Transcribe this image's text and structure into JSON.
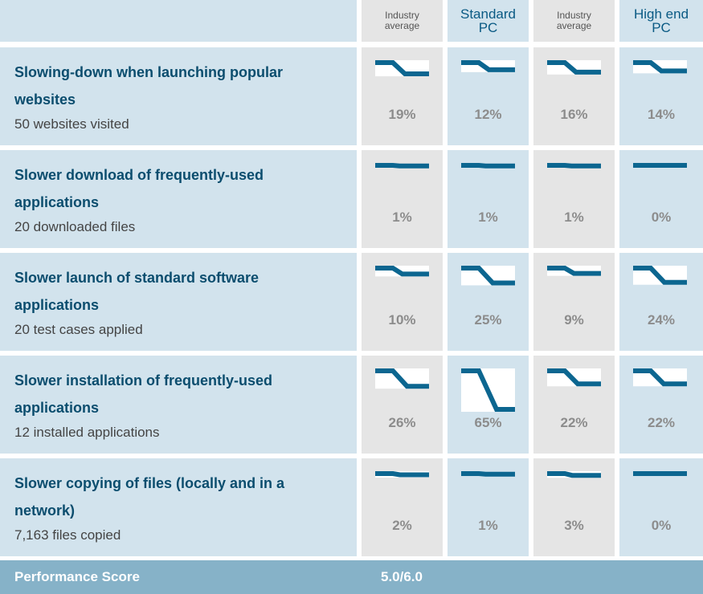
{
  "header": {
    "columns": [
      {
        "label": "Industry average",
        "style": "small",
        "bg": "#e5e5e5"
      },
      {
        "label": "Standard PC",
        "style": "big",
        "bg": "#d2e3ed"
      },
      {
        "label": "Industry average",
        "style": "small",
        "bg": "#e5e5e5"
      },
      {
        "label": "High end PC",
        "style": "big",
        "bg": "#d2e3ed"
      }
    ]
  },
  "colors": {
    "row_bg": "#d2e3ed",
    "gray_col_bg": "#e5e5e5",
    "line": "#0c6690",
    "title_text": "#0b4d6e",
    "score_bar": "#86b2c8"
  },
  "rows": [
    {
      "title": "Slowing-down when launching popular websites",
      "subtitle": "50 websites visited",
      "values": [
        "19%",
        "12%",
        "16%",
        "14%"
      ],
      "fractions": [
        0.19,
        0.12,
        0.16,
        0.14
      ]
    },
    {
      "title": "Slower download of frequently-used applications",
      "subtitle": "20 downloaded files",
      "values": [
        "1%",
        "1%",
        "1%",
        "0%"
      ],
      "fractions": [
        0.01,
        0.01,
        0.01,
        0.0
      ]
    },
    {
      "title": "Slower launch of standard software applications",
      "subtitle": "20 test cases applied",
      "values": [
        "10%",
        "25%",
        "9%",
        "24%"
      ],
      "fractions": [
        0.1,
        0.25,
        0.09,
        0.24
      ]
    },
    {
      "title": "Slower installation of frequently-used applications",
      "subtitle": "12 installed applications",
      "values": [
        "26%",
        "65%",
        "22%",
        "22%"
      ],
      "fractions": [
        0.26,
        0.65,
        0.22,
        0.22
      ]
    },
    {
      "title": "Slower copying of files (locally and in a network)",
      "subtitle": "7,163 files copied",
      "values": [
        "2%",
        "1%",
        "3%",
        "0%"
      ],
      "fractions": [
        0.02,
        0.01,
        0.03,
        0.0
      ]
    }
  ],
  "score": {
    "label": "Performance Score",
    "value": "5.0/6.0"
  }
}
